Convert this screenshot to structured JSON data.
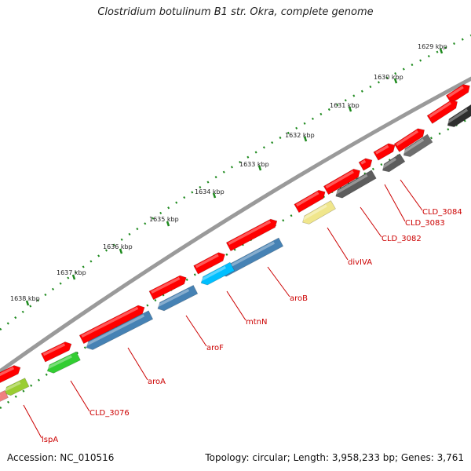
{
  "title": "Clostridium botulinum B1 str. Okra, complete genome",
  "accession_label": "Accession: NC_010516",
  "summary_label": "Topology: circular; Length: 3,958,233 bp; Genes: 3,761",
  "colors": {
    "backbone": "#777777",
    "forward_feature": "#ff0000",
    "tick": "#1e8a1e",
    "label": "#cc0000",
    "leader": "#cc0000"
  },
  "scale_ticks": [
    "1629 kbp",
    "1630 kbp",
    "1631 kbp",
    "1632 kbp",
    "1633 kbp",
    "1634 kbp",
    "1635 kbp",
    "1636 kbp",
    "1637 kbp",
    "1638 kbp"
  ],
  "gene_labels": [
    "CLD_3084",
    "CLD_3083",
    "CLD_3082",
    "divIVA",
    "aroB",
    "mtnN",
    "aroF",
    "aroA",
    "CLD_3076",
    "lspA"
  ],
  "reverse_feature_colors": [
    "#2e2e2e",
    "#6e6e6e",
    "#5d5d5d",
    "#f0e68c",
    "#4682b4",
    "#00bfff",
    "#4682b4",
    "#4682b4",
    "#32cd32",
    "#9acd32"
  ]
}
